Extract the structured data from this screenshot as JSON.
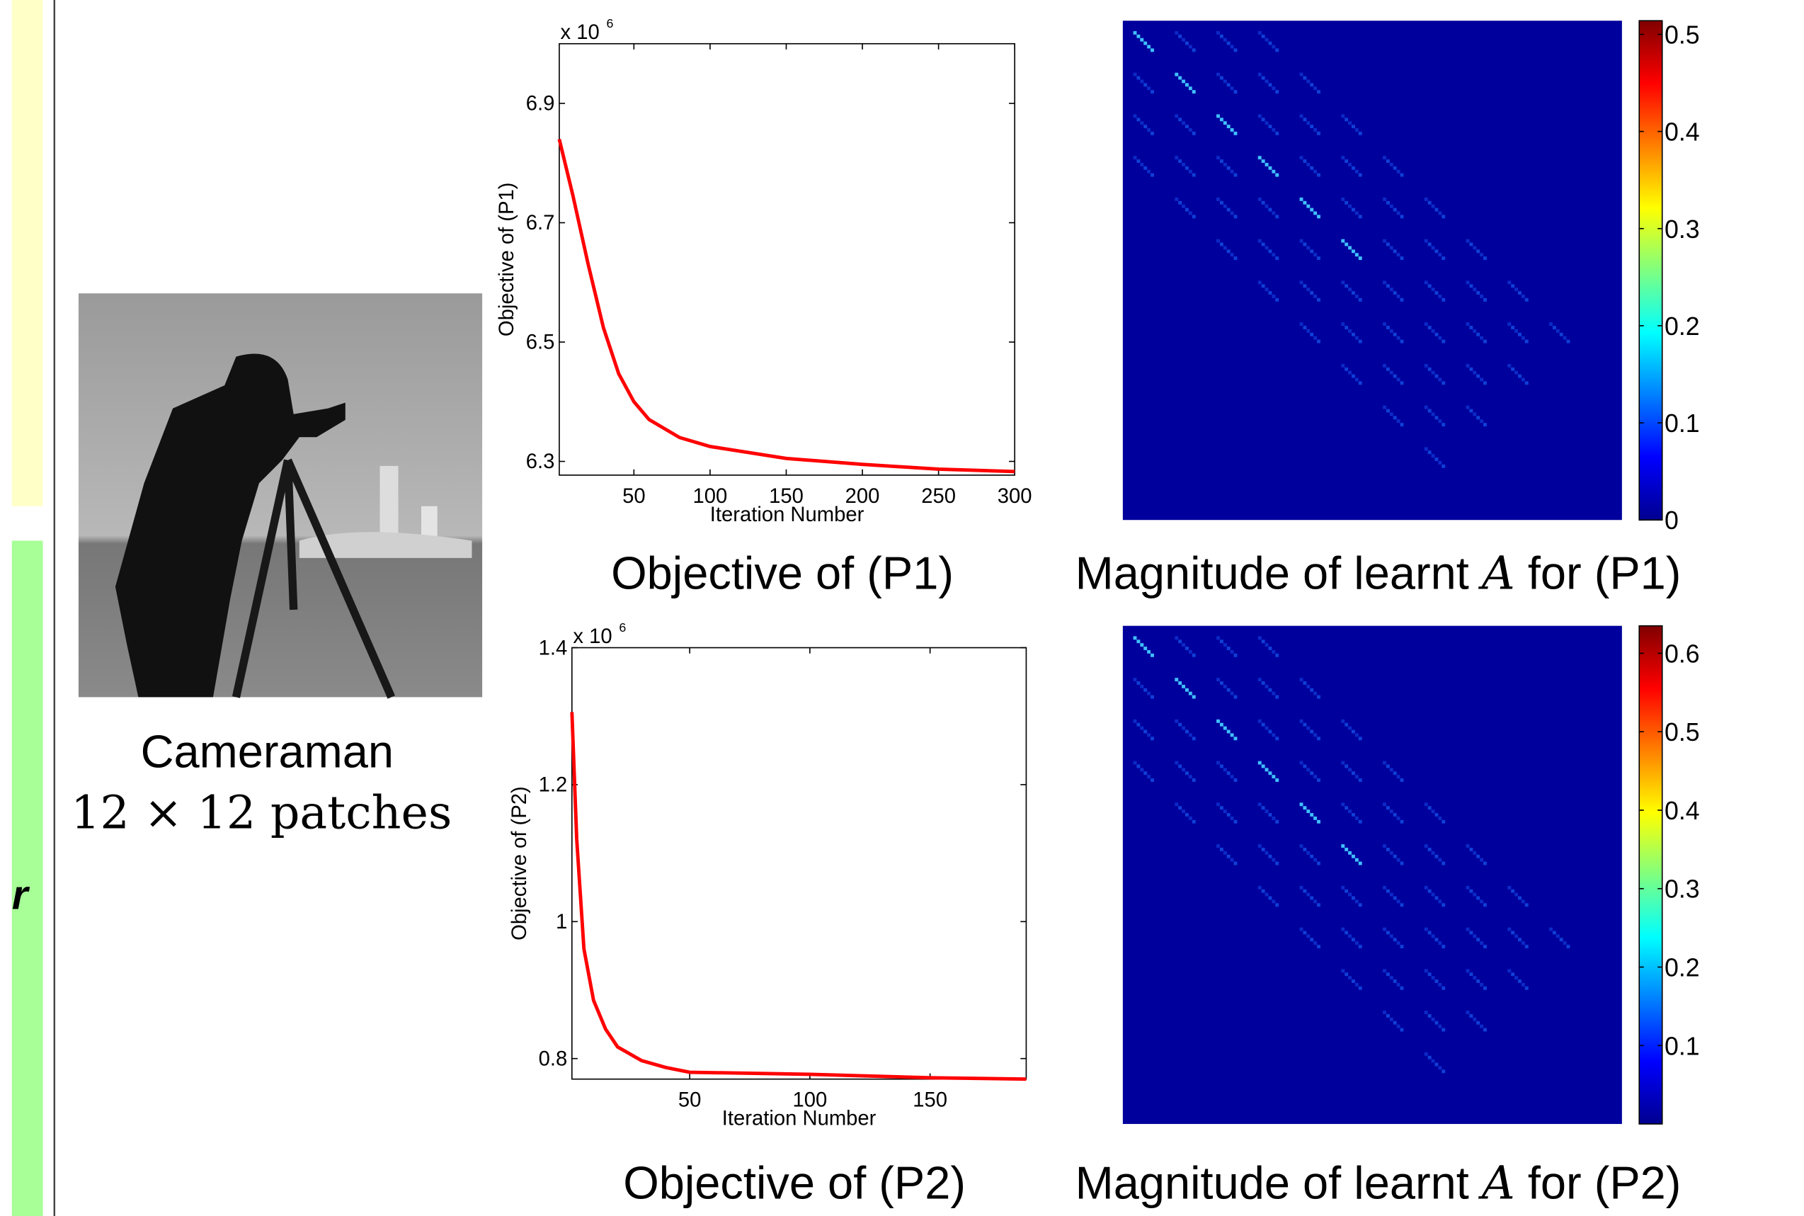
{
  "left_fragment": "r",
  "image_caption": {
    "title": "Cameraman",
    "subtitle": "12 × 12 patches"
  },
  "chart_data": [
    {
      "type": "line",
      "caption": "Objective of (P1)",
      "x_label": "Iteration Number",
      "y_label": "Objective of (P1)",
      "multiplier": {
        "base": "x 10",
        "exponent": "6"
      },
      "color": "#ff0000",
      "x": [
        1,
        10,
        20,
        30,
        40,
        50,
        60,
        80,
        100,
        150,
        200,
        250,
        300
      ],
      "values": [
        6.84,
        6.745,
        6.63,
        6.524,
        6.447,
        6.4,
        6.37,
        6.34,
        6.325,
        6.305,
        6.295,
        6.287,
        6.283
      ],
      "xlim": [
        1,
        300
      ],
      "ylim": [
        6.277,
        7.0
      ],
      "xticks": [
        50,
        100,
        150,
        200,
        250,
        300
      ],
      "yticks": [
        6.3,
        6.5,
        6.7,
        6.9
      ]
    },
    {
      "type": "line",
      "caption": "Objective of (P2)",
      "x_label": "Iteration Number",
      "y_label": "Objective of (P2)",
      "multiplier": {
        "base": "x 10",
        "exponent": "6"
      },
      "color": "#ff0000",
      "x": [
        1,
        3,
        6,
        10,
        15,
        20,
        30,
        40,
        50,
        100,
        150,
        190
      ],
      "values": [
        1.306,
        1.12,
        0.96,
        0.885,
        0.843,
        0.817,
        0.797,
        0.787,
        0.78,
        0.777,
        0.772,
        0.77
      ],
      "xlim": [
        1,
        190
      ],
      "ylim": [
        0.77,
        1.4
      ],
      "xticks": [
        50,
        100,
        150
      ],
      "yticks": [
        0.8,
        1,
        1.2,
        1.4
      ]
    },
    {
      "type": "heatmap",
      "caption": {
        "prefix": "Magnitude of learnt ",
        "symbol": "A",
        "suffix": " for (P1)"
      },
      "zlim": [
        0,
        0.514
      ],
      "zticks": [
        0,
        0.1,
        0.2,
        0.3,
        0.4,
        0.5
      ]
    },
    {
      "type": "heatmap",
      "caption": {
        "prefix": "Magnitude of learnt ",
        "symbol": "A",
        "suffix": " for (P2)"
      },
      "zlim": [
        0,
        0.635
      ],
      "zticks": [
        0.1,
        0.2,
        0.3,
        0.4,
        0.5,
        0.6
      ]
    }
  ]
}
